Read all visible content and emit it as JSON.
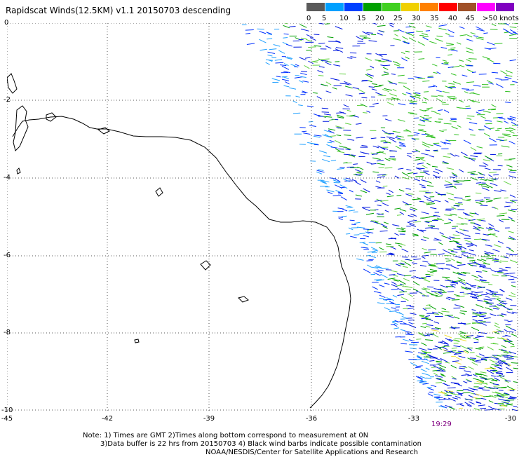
{
  "title": "Rapidscat Winds(12.5KM) v1.1 20150703 descending",
  "legend": {
    "colors": [
      "#5a5a5a",
      "#00a0ff",
      "#0040ff",
      "#00a000",
      "#40d020",
      "#f0d000",
      "#ff8000",
      "#ff0000",
      "#a05028",
      "#ff00ff",
      "#8000c0"
    ],
    "labels": [
      "0",
      "5",
      "10",
      "15",
      "20",
      "25",
      "30",
      "35",
      "40",
      "45",
      ">50 knots"
    ]
  },
  "y_labels": [
    "0",
    "-2",
    "-4",
    "-6",
    "-8",
    "-10"
  ],
  "x_labels": [
    "-45",
    "-42",
    "-39",
    "-36",
    "-33",
    "-30"
  ],
  "time_label": "19:29",
  "notes": [
    "Note: 1) Times are GMT 2)Times along bottom correspond to measurement at 0N",
    "3)Data buffer is 22 hrs from 20150703 4) Black wind barbs indicate possible contamination",
    "NOAA/NESDIS/Center for Satellite Applications and Research"
  ]
}
